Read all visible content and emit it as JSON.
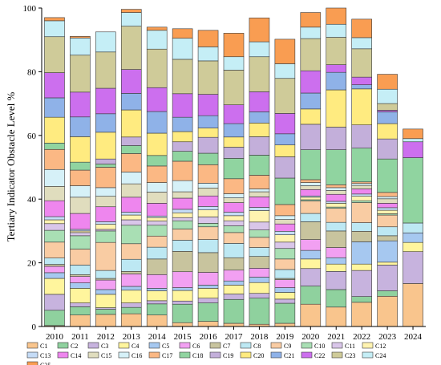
{
  "chart_data": {
    "type": "bar",
    "stacked": true,
    "ylabel": "Tertiary Indicator Obstacle Level %",
    "xlabel": "",
    "ylim": [
      0,
      100
    ],
    "yticks": [
      0,
      20,
      40,
      60,
      80,
      100
    ],
    "grid": false,
    "legend_position": "bottom",
    "categories": [
      "2010",
      "2011",
      "2012",
      "2013",
      "2014",
      "2015",
      "2016",
      "2017",
      "2018",
      "2019",
      "2020",
      "2021",
      "2022",
      "2023",
      "2024"
    ],
    "series": [
      {
        "name": "C1",
        "color": "#F9C58D",
        "values": [
          0.3,
          3.6,
          3.8,
          4.0,
          3.6,
          1.2,
          1.6,
          1.0,
          0.7,
          1.0,
          7.0,
          6.1,
          7.6,
          9.5,
          13.5
        ]
      },
      {
        "name": "C2",
        "color": "#8FD19E",
        "values": [
          4.8,
          2.6,
          1.6,
          2.0,
          3.5,
          5.8,
          5.8,
          7.5,
          8.2,
          6.3,
          5.7,
          5.5,
          1.8,
          1.7,
          0
        ]
      },
      {
        "name": "C3",
        "color": "#C7B3DE",
        "values": [
          5.0,
          1.2,
          0.5,
          1.4,
          1.0,
          1.0,
          1.5,
          1.7,
          1.5,
          1.3,
          5.5,
          5.7,
          8.2,
          8.1,
          10.0
        ]
      },
      {
        "name": "C4",
        "color": "#FFF59D",
        "values": [
          5.0,
          4.6,
          4.2,
          4.0,
          3.1,
          3.3,
          3.1,
          2.8,
          3.4,
          2.1,
          3.0,
          2.3,
          2.0,
          0.9,
          2.9
        ]
      },
      {
        "name": "C5",
        "color": "#A6C8F0",
        "values": [
          1.8,
          1.7,
          1.5,
          1.2,
          0.8,
          0.9,
          1.0,
          1.3,
          1.7,
          1.5,
          2.7,
          2.0,
          7.0,
          6.7,
          3.0
        ]
      },
      {
        "name": "C6",
        "color": "#F2A0F2",
        "values": [
          2.0,
          2.0,
          3.0,
          3.9,
          4.3,
          5.0,
          4.0,
          3.4,
          2.8,
          2.5,
          3.4,
          3.2,
          0,
          0,
          0
        ]
      },
      {
        "name": "C7",
        "color": "#C8C49E",
        "values": [
          0.6,
          0.6,
          0.5,
          0.8,
          4.9,
          6.4,
          6.2,
          3.9,
          3.7,
          0.4,
          5.6,
          5.2,
          3.3,
          1.6,
          0
        ]
      },
      {
        "name": "C8",
        "color": "#BDE8F3",
        "values": [
          2.0,
          3.0,
          2.5,
          3.8,
          3.7,
          3.5,
          4.1,
          4.5,
          2.8,
          2.8,
          2.6,
          2.7,
          2.7,
          2.8,
          3.1
        ]
      },
      {
        "name": "C9",
        "color": "#F9CCA3",
        "values": [
          5.0,
          5.0,
          8.8,
          4.9,
          3.5,
          3.5,
          4.0,
          3.4,
          3.2,
          3.3,
          3.9,
          4.4,
          6.3,
          3.7,
          0
        ]
      },
      {
        "name": "C10",
        "color": "#A9DFB4",
        "values": [
          3.7,
          4.2,
          3.6,
          5.8,
          3.4,
          2.6,
          1.1,
          2.1,
          2.3,
          3.3,
          0.4,
          0.4,
          0.6,
          0.4,
          0
        ]
      },
      {
        "name": "C11",
        "color": "#D9C6E9",
        "values": [
          2.1,
          1.0,
          0.5,
          1.7,
          1.3,
          1.0,
          2.0,
          1.6,
          2.5,
          2.0,
          0,
          0,
          0,
          0,
          0
        ]
      },
      {
        "name": "C12",
        "color": "#FFF3B0",
        "values": [
          1.2,
          0.5,
          1.6,
          1.5,
          1.1,
          1.5,
          2.2,
          1.6,
          3.6,
          2.3,
          0.8,
          1.2,
          1.4,
          1.1,
          0
        ]
      },
      {
        "name": "C13",
        "color": "#C5DCF7",
        "values": [
          1.0,
          0.5,
          0.8,
          0.9,
          0.5,
          1.1,
          1.1,
          1.1,
          1.0,
          1.1,
          0.4,
          0.6,
          0.7,
          0.8,
          0
        ]
      },
      {
        "name": "C14",
        "color": "#EE86EE",
        "values": [
          5.0,
          5.0,
          4.7,
          4.7,
          4.0,
          3.5,
          3.3,
          3.0,
          3.3,
          2.3,
          2.0,
          2.2,
          1.6,
          1.4,
          0
        ]
      },
      {
        "name": "C15",
        "color": "#E0DDBE",
        "values": [
          4.5,
          5.1,
          3.3,
          4.2,
          3.5,
          2.0,
          2.5,
          1.5,
          1.6,
          1.4,
          1.2,
          1.2,
          1.1,
          1.4,
          0
        ]
      },
      {
        "name": "C16",
        "color": "#D6F1F8",
        "values": [
          5.3,
          3.6,
          2.7,
          3.7,
          3.0,
          3.5,
          1.5,
          1.3,
          0.9,
          1.2,
          1.0,
          0.9,
          0.6,
          0.7,
          0
        ]
      },
      {
        "name": "C17",
        "color": "#FBB884",
        "values": [
          6.3,
          4.9,
          6.4,
          5.8,
          5.2,
          6.1,
          5.8,
          4.7,
          4.3,
          3.5,
          0.9,
          0.9,
          0.5,
          1.3,
          0
        ]
      },
      {
        "name": "C18",
        "color": "#90D4A0",
        "values": [
          2.0,
          2.5,
          1.0,
          2.5,
          3.3,
          3.1,
          3.6,
          6.4,
          6.3,
          8.3,
          9.4,
          11.0,
          10.6,
          10.5,
          20.5
        ]
      },
      {
        "name": "C19",
        "color": "#C3AFDA",
        "values": [
          0,
          0,
          1.6,
          2.7,
          0,
          3.0,
          5.0,
          3.5,
          5.8,
          6.7,
          8.0,
          7.1,
          7.3,
          6.3,
          0
        ]
      },
      {
        "name": "C20",
        "color": "#FFEB80",
        "values": [
          8.1,
          8.0,
          8.4,
          8.5,
          7.0,
          3.2,
          2.9,
          3.2,
          4.3,
          3.7,
          4.8,
          11.7,
          11.3,
          4.8,
          0
        ]
      },
      {
        "name": "C21",
        "color": "#8FB2E8",
        "values": [
          6.1,
          6.2,
          5.8,
          5.2,
          6.8,
          4.5,
          3.9,
          4.2,
          3.5,
          3.5,
          5.0,
          5.5,
          1.3,
          3.7,
          0
        ]
      },
      {
        "name": "C22",
        "color": "#CC6FEE",
        "values": [
          7.9,
          7.8,
          8.0,
          7.5,
          7.5,
          7.4,
          6.7,
          5.9,
          6.3,
          6.4,
          7.0,
          2.4,
          2.4,
          0.5,
          5.0
        ]
      },
      {
        "name": "C23",
        "color": "#CFCB99",
        "values": [
          11.3,
          11.6,
          11.4,
          13.6,
          12.1,
          10.8,
          10.5,
          10.9,
          11.0,
          11.0,
          10.1,
          8.6,
          8.9,
          2.1,
          0
        ]
      },
      {
        "name": "C24",
        "color": "#C5EEF6",
        "values": [
          5.0,
          5.4,
          6.3,
          4.3,
          5.9,
          6.6,
          4.4,
          4.2,
          4.7,
          4.6,
          3.6,
          4.1,
          3.5,
          4.5,
          1.0
        ]
      },
      {
        "name": "C25",
        "color": "#F99D52",
        "values": [
          1.0,
          0.5,
          0,
          1.0,
          1.0,
          3.0,
          5.2,
          7.4,
          7.5,
          7.7,
          4.6,
          5.2,
          5.8,
          4.7,
          3.0
        ]
      }
    ]
  }
}
